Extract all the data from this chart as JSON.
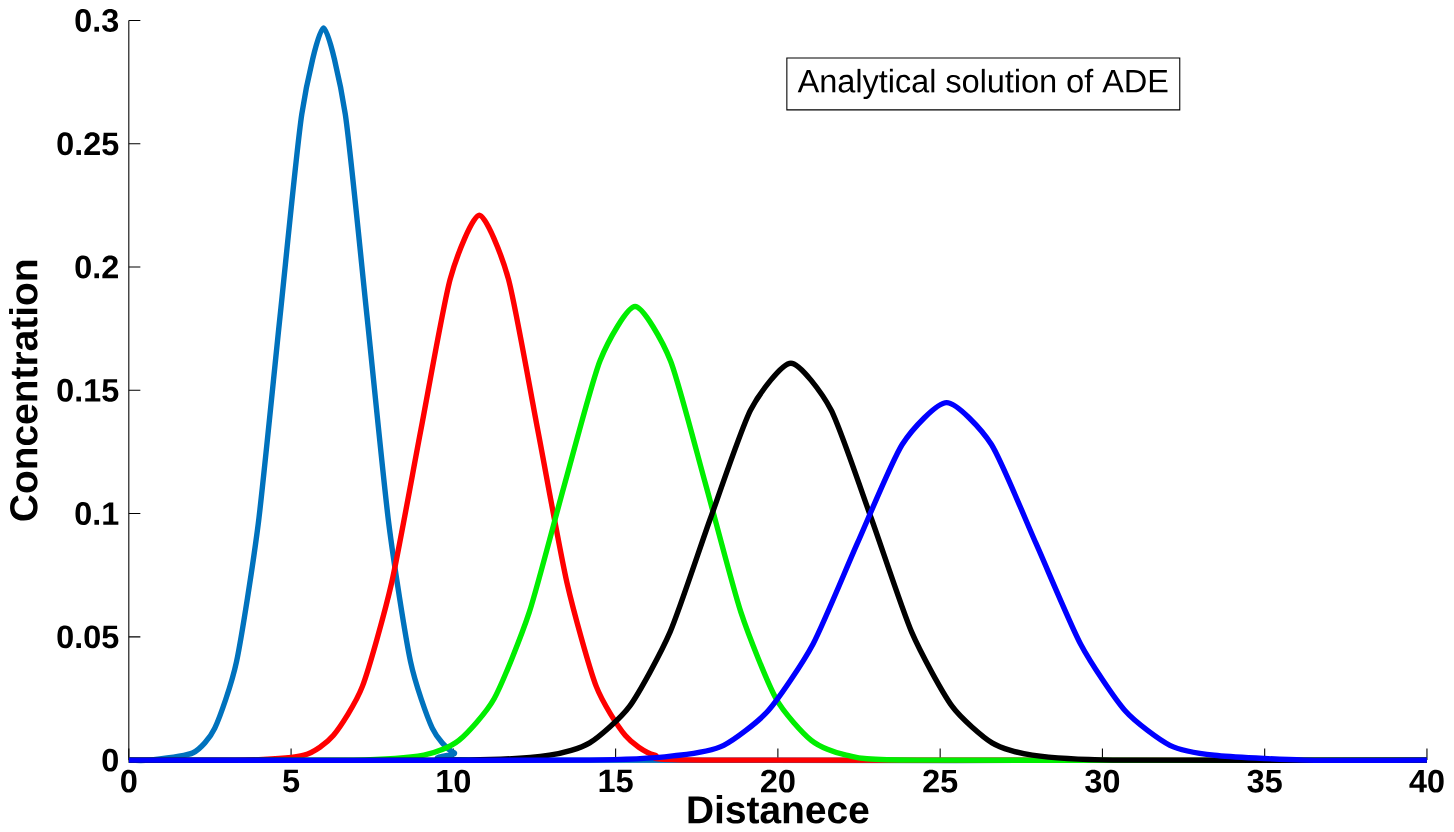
{
  "chart_data": {
    "type": "line",
    "xlabel": "Distanece",
    "ylabel": "Concentration",
    "xlim": [
      0,
      40
    ],
    "ylim": [
      0,
      0.3
    ],
    "xticks": [
      0,
      5,
      10,
      15,
      20,
      25,
      30,
      35,
      40
    ],
    "yticks": [
      0,
      0.05,
      0.1,
      0.15,
      0.2,
      0.25,
      0.3
    ],
    "annotations": [
      "Analytical solution of ADE"
    ],
    "line_style": "solid",
    "marker": "none",
    "series": [
      {
        "color": "#0072bd",
        "x": [
          0,
          0.64,
          1.98,
          2.65,
          3.32,
          3.99,
          4.66,
          5.33,
          6,
          6.67,
          7.34,
          8.01,
          8.68,
          9.35,
          10.02,
          11.36,
          40
        ],
        "values": [
          0,
          0,
          0.003,
          0.013,
          0.04,
          0.096,
          0.18,
          0.262,
          0.297,
          0.262,
          0.18,
          0.096,
          0.04,
          0.013,
          0.003,
          0,
          0
        ]
      },
      {
        "color": "#ff0000",
        "x": [
          0,
          3.6,
          5.4,
          6.3,
          7.2,
          8.1,
          9,
          9.9,
          10.8,
          11.7,
          12.6,
          13.5,
          14.4,
          15.3,
          16.2,
          18,
          40
        ],
        "values": [
          0,
          0,
          0.002,
          0.01,
          0.03,
          0.072,
          0.134,
          0.195,
          0.221,
          0.195,
          0.134,
          0.072,
          0.03,
          0.01,
          0.002,
          0,
          0
        ]
      },
      {
        "color": "#00ee00",
        "x": [
          0,
          6.92,
          9.09,
          10.17,
          11.26,
          12.34,
          13.43,
          14.52,
          15.6,
          16.69,
          17.77,
          18.86,
          19.94,
          21.03,
          22.11,
          24.28,
          40
        ],
        "values": [
          0,
          0,
          0.002,
          0.008,
          0.025,
          0.06,
          0.112,
          0.162,
          0.184,
          0.162,
          0.112,
          0.06,
          0.025,
          0.008,
          0.002,
          0,
          0
        ]
      },
      {
        "color": "#000000",
        "x": [
          0,
          10.48,
          12.96,
          14.2,
          15.44,
          16.68,
          17.92,
          19.16,
          20.4,
          21.64,
          22.88,
          24.12,
          25.36,
          26.6,
          27.84,
          30.32,
          40
        ],
        "values": [
          0,
          0,
          0.002,
          0.007,
          0.022,
          0.052,
          0.098,
          0.142,
          0.161,
          0.142,
          0.098,
          0.052,
          0.022,
          0.007,
          0.002,
          0,
          0
        ]
      },
      {
        "color": "#0000ff",
        "x": [
          0,
          14.2,
          16.95,
          18.33,
          19.7,
          21.08,
          22.45,
          23.83,
          25.2,
          26.58,
          27.95,
          29.33,
          30.7,
          32.08,
          33.45,
          36.2,
          40
        ],
        "values": [
          0,
          0,
          0.002,
          0.006,
          0.02,
          0.047,
          0.088,
          0.128,
          0.145,
          0.128,
          0.088,
          0.047,
          0.02,
          0.006,
          0.002,
          0,
          0
        ]
      }
    ]
  }
}
